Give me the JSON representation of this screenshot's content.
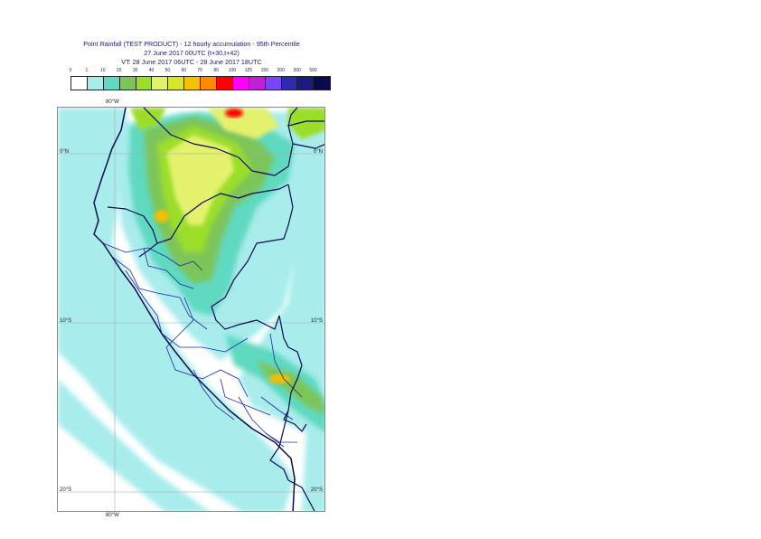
{
  "header": {
    "line1": "Point Rainfall (TEST PRODUCT) - 12 hourly accumulation - 95th Percentile",
    "line2": "27 June 2017 00UTC (t+30,t+42)",
    "line3": "VT: 28 June 2017 06UTC - 28 June 2017 18UTC"
  },
  "legend": {
    "thresholds": [
      "0",
      "1",
      "10",
      "20",
      "30",
      "40",
      "50",
      "60",
      "70",
      "80",
      "100",
      "125",
      "150",
      "200",
      "300",
      "500"
    ],
    "colors": [
      "#ffffff",
      "#a8ecec",
      "#5fd9c0",
      "#7dc55a",
      "#9bde2a",
      "#e3f16d",
      "#d6e62b",
      "#f7c000",
      "#ff8a00",
      "#ff0000",
      "#ff00ff",
      "#c01fd4",
      "#7a46f2",
      "#2f2bb0",
      "#1a1a80",
      "#0a0a4f"
    ]
  },
  "map": {
    "lat_labels": {
      "left_0": "0°N",
      "right_0": "0°N",
      "left_10": "10°S",
      "right_10": "10°S",
      "left_20": "20°S",
      "right_20": "20°S"
    },
    "lon_labels": {
      "top_80": "80°W",
      "bottom_80": "80°W"
    },
    "colors": {
      "light": "#a8ecec",
      "mid": "#5fd9c0",
      "green": "#7dc55a",
      "lime": "#9bde2a",
      "yellow": "#e3f16d",
      "orange": "#f7c000",
      "red": "#ff0000",
      "border": "#0a0a4f",
      "region": "#2424b8"
    }
  }
}
